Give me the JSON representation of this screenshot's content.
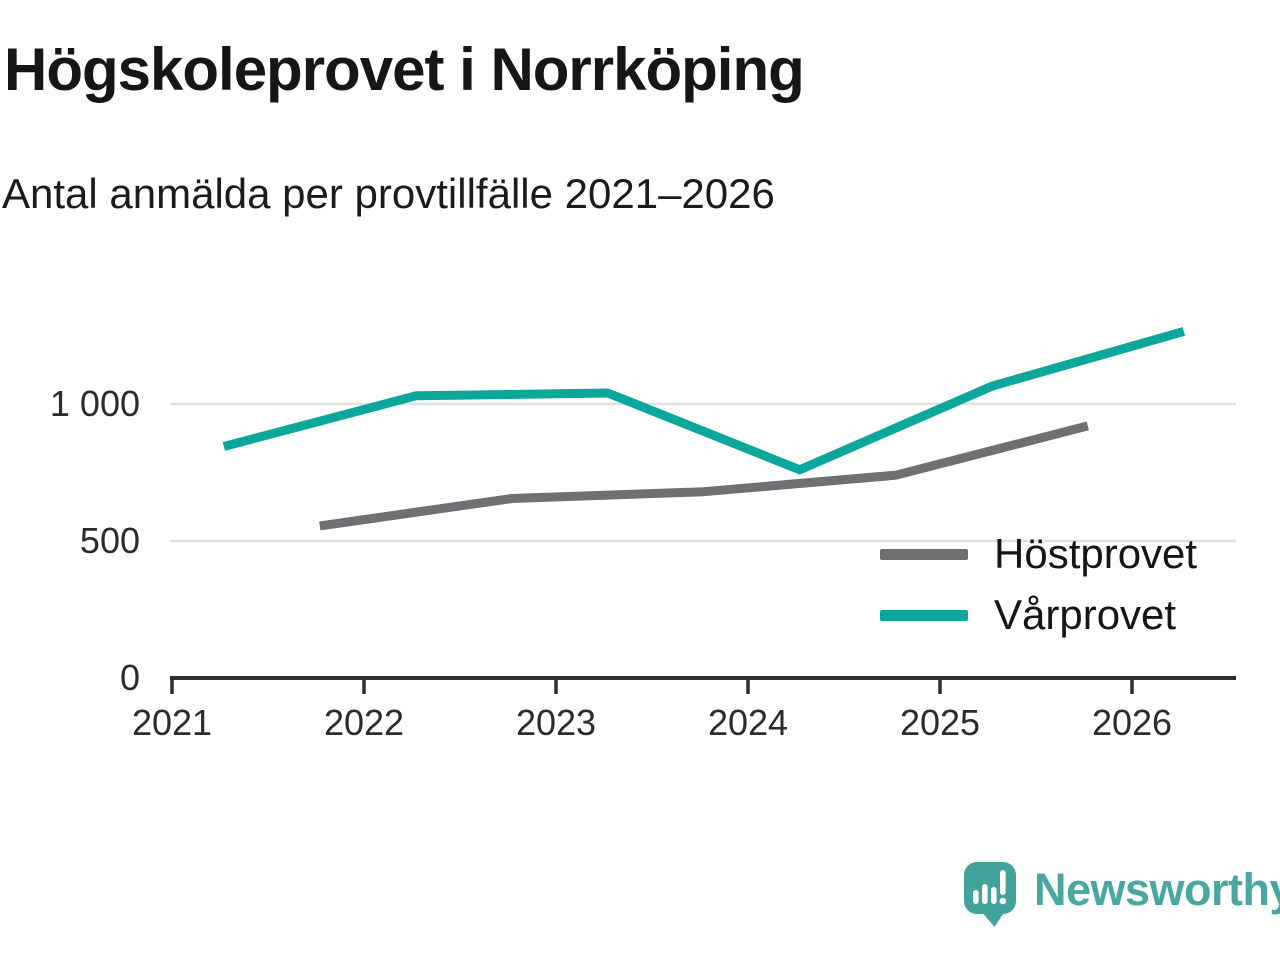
{
  "title": "Högskoleprovet i Norrköping",
  "subtitle": "Antal anmälda per provtillfälle 2021–2026",
  "legend": {
    "items": [
      {
        "label": "Höstprovet",
        "color": "#6f6f74"
      },
      {
        "label": "Vårprovet",
        "color": "#0ba79a"
      }
    ]
  },
  "footer": {
    "brand": "Newsworthy",
    "logo_icon": "newsworthy-speech-bubble-bar-chart-icon",
    "brand_color": "#4aa6a0",
    "logo_fill": "#41a39c"
  },
  "colors": {
    "axis": "#2e2e2e",
    "gridline": "#e0e0e0",
    "tick_text": "#2b2b2b"
  },
  "chart_data": {
    "type": "line",
    "title": "Högskoleprovet i Norrköping",
    "subtitle": "Antal anmälda per provtillfälle 2021–2026",
    "xlabel": "",
    "ylabel": "",
    "x_ticks": [
      2021,
      2022,
      2023,
      2024,
      2025,
      2026
    ],
    "x_ticklabels": [
      "2021",
      "2022",
      "2023",
      "2024",
      "2025",
      "2026"
    ],
    "y_ticks": [
      0,
      500,
      1000
    ],
    "y_ticklabels": [
      "0",
      "500",
      "1 000"
    ],
    "xlim": [
      2021,
      2026.55
    ],
    "ylim": [
      0,
      1450
    ],
    "grid": "horizontal-only",
    "legend_position": "inside-right",
    "series": [
      {
        "name": "Höstprovet",
        "color": "#6f6f74",
        "x": [
          2021.77,
          2022.77,
          2023.77,
          2024.77,
          2025.77
        ],
        "values": [
          555,
          655,
          680,
          740,
          920
        ]
      },
      {
        "name": "Vårprovet",
        "color": "#0ba79a",
        "x": [
          2021.27,
          2022.27,
          2023.27,
          2024.27,
          2025.27,
          2026.27
        ],
        "values": [
          845,
          1030,
          1040,
          760,
          1065,
          1265
        ]
      }
    ]
  }
}
